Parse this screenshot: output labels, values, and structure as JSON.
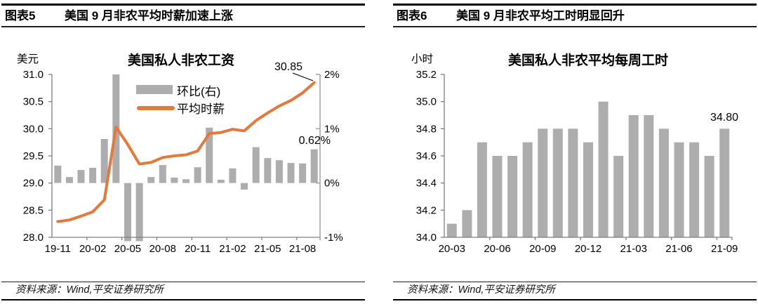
{
  "panels": [
    {
      "header": {
        "tag": "图表5",
        "title": "美国 9 月非农平均时薪加速上涨"
      },
      "source": "资料来源：Wind,平安证券研究所"
    },
    {
      "header": {
        "tag": "图表6",
        "title": "美国 9 月非农平均工时明显回升"
      },
      "source": "资料来源：Wind,平安证券研究所"
    }
  ],
  "chart_data": [
    {
      "type": "bar+line",
      "title": "美国私人非农工资",
      "unit_label": "美元",
      "grid": false,
      "legend_position": "top-center",
      "categories": [
        "19-11",
        "19-12",
        "20-01",
        "20-02",
        "20-03",
        "20-04",
        "20-05",
        "20-06",
        "20-07",
        "20-08",
        "20-09",
        "20-10",
        "20-11",
        "20-12",
        "21-01",
        "21-02",
        "21-03",
        "21-04",
        "21-05",
        "21-06",
        "21-07",
        "21-08",
        "21-09"
      ],
      "x_tick_labels": [
        "19-11",
        "20-02",
        "20-05",
        "20-08",
        "20-11",
        "21-02",
        "21-05",
        "21-08"
      ],
      "left_axis": {
        "min": 28.0,
        "max": 31.0,
        "step": 0.5,
        "labels": [
          "28.0",
          "28.5",
          "29.0",
          "29.5",
          "30.0",
          "30.5",
          "31.0"
        ]
      },
      "right_axis": {
        "min": -1,
        "max": 2,
        "step": 1,
        "labels": [
          "-1%",
          "0%",
          "1%",
          "2%"
        ]
      },
      "series": [
        {
          "name": "环比(右)",
          "type": "bar",
          "axis": "right",
          "color": "#ADADAD",
          "values": [
            0.32,
            0.11,
            0.24,
            0.28,
            0.81,
            4.7,
            -1.2,
            -1.3,
            0.11,
            0.33,
            0.1,
            0.07,
            0.29,
            1.02,
            0.06,
            0.27,
            -0.12,
            0.66,
            0.46,
            0.42,
            0.37,
            0.36,
            0.62
          ]
        },
        {
          "name": "平均时薪",
          "type": "line",
          "axis": "left",
          "color": "#E5793A",
          "values": [
            28.29,
            28.32,
            28.39,
            28.47,
            28.69,
            30.03,
            29.71,
            29.35,
            29.38,
            29.47,
            29.5,
            29.52,
            29.59,
            29.91,
            29.93,
            29.99,
            29.96,
            30.15,
            30.29,
            30.42,
            30.52,
            30.66,
            30.85
          ]
        }
      ],
      "annotations": [
        {
          "text": "30.85",
          "target": "line-end"
        },
        {
          "text": "0.62%",
          "target": "last-bar"
        }
      ]
    },
    {
      "type": "bar",
      "title": "美国私人非农平均每周工时",
      "unit_label": "小时",
      "grid": false,
      "categories": [
        "20-03",
        "20-04",
        "20-05",
        "20-06",
        "20-07",
        "20-08",
        "20-09",
        "20-10",
        "20-11",
        "20-12",
        "21-01",
        "21-02",
        "21-03",
        "21-04",
        "21-05",
        "21-06",
        "21-07",
        "21-08",
        "21-09"
      ],
      "x_tick_labels": [
        "20-03",
        "20-06",
        "20-09",
        "20-12",
        "21-03",
        "21-06",
        "21-09"
      ],
      "left_axis": {
        "min": 34.0,
        "max": 35.2,
        "step": 0.2,
        "labels": [
          "34.0",
          "34.2",
          "34.4",
          "34.6",
          "34.8",
          "35.0",
          "35.2"
        ]
      },
      "series": [
        {
          "name": "平均每周工时",
          "type": "bar",
          "axis": "left",
          "color": "#ADADAD",
          "values": [
            34.1,
            34.2,
            34.7,
            34.6,
            34.6,
            34.7,
            34.8,
            34.8,
            34.8,
            34.7,
            35.0,
            34.6,
            34.9,
            34.9,
            34.8,
            34.7,
            34.7,
            34.6,
            34.8
          ]
        }
      ],
      "annotations": [
        {
          "text": "34.80",
          "target": "last-bar"
        }
      ]
    }
  ]
}
